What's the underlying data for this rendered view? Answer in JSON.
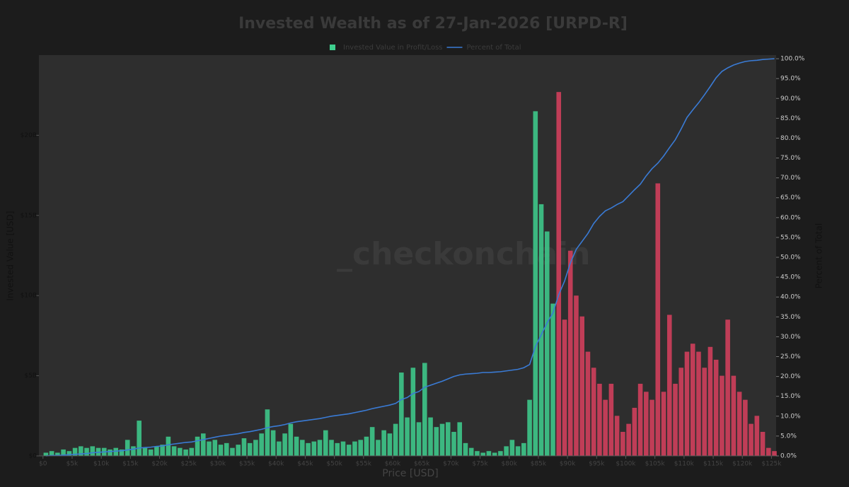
{
  "chart_data": {
    "type": "combo",
    "title": "Invested Wealth as of 27-Jan-2026 [URPD-R]",
    "watermark": "_checkonchain",
    "xlabel": "Price [USD]",
    "ylabel": "Invested Value [USD]",
    "y2label": "Percent of Total",
    "xlim": [
      -700,
      125800
    ],
    "ylim": [
      0,
      25000000000
    ],
    "y2lim": [
      0,
      100.9
    ],
    "xticks": [
      {
        "value": 0,
        "label": "$0"
      },
      {
        "value": 5000,
        "label": "$5k"
      },
      {
        "value": 10000,
        "label": "$10k"
      },
      {
        "value": 15000,
        "label": "$15k"
      },
      {
        "value": 20000,
        "label": "$20k"
      },
      {
        "value": 25000,
        "label": "$25k"
      },
      {
        "value": 30000,
        "label": "$30k"
      },
      {
        "value": 35000,
        "label": "$35k"
      },
      {
        "value": 40000,
        "label": "$40k"
      },
      {
        "value": 45000,
        "label": "$45k"
      },
      {
        "value": 50000,
        "label": "$50k"
      },
      {
        "value": 55000,
        "label": "$55k"
      },
      {
        "value": 60000,
        "label": "$60k"
      },
      {
        "value": 65000,
        "label": "$65k"
      },
      {
        "value": 70000,
        "label": "$70k"
      },
      {
        "value": 75000,
        "label": "$75k"
      },
      {
        "value": 80000,
        "label": "$80k"
      },
      {
        "value": 85000,
        "label": "$85k"
      },
      {
        "value": 90000,
        "label": "$90k"
      },
      {
        "value": 95000,
        "label": "$95k"
      },
      {
        "value": 100000,
        "label": "$100k"
      },
      {
        "value": 105000,
        "label": "$105k"
      },
      {
        "value": 110000,
        "label": "$110k"
      },
      {
        "value": 115000,
        "label": "$115k"
      },
      {
        "value": 120000,
        "label": "$120k"
      },
      {
        "value": 125000,
        "label": "$125k"
      }
    ],
    "yticks": [
      {
        "value": 0,
        "label": "$0"
      },
      {
        "value": 5000000000,
        "label": "$5B"
      },
      {
        "value": 10000000000,
        "label": "$10B"
      },
      {
        "value": 15000000000,
        "label": "$15B"
      },
      {
        "value": 20000000000,
        "label": "$20B"
      }
    ],
    "y2ticks": [
      {
        "value": 0,
        "label": "0.0%"
      },
      {
        "value": 5,
        "label": "5.0%"
      },
      {
        "value": 10,
        "label": "10.0%"
      },
      {
        "value": 15,
        "label": "15.0%"
      },
      {
        "value": 20,
        "label": "20.0%"
      },
      {
        "value": 25,
        "label": "25.0%"
      },
      {
        "value": 30,
        "label": "30.0%"
      },
      {
        "value": 35,
        "label": "35.0%"
      },
      {
        "value": 40,
        "label": "40.0%"
      },
      {
        "value": 45,
        "label": "45.0%"
      },
      {
        "value": 50,
        "label": "50.0%"
      },
      {
        "value": 55,
        "label": "55.0%"
      },
      {
        "value": 60,
        "label": "60.0%"
      },
      {
        "value": 65,
        "label": "65.0%"
      },
      {
        "value": 70,
        "label": "70.0%"
      },
      {
        "value": 75,
        "label": "75.0%"
      },
      {
        "value": 80,
        "label": "80.0%"
      },
      {
        "value": 85,
        "label": "85.0%"
      },
      {
        "value": 90,
        "label": "90.0%"
      },
      {
        "value": 95,
        "label": "95.0%"
      },
      {
        "value": 100,
        "label": "100.0%"
      }
    ],
    "x": [
      500,
      1500,
      2500,
      3500,
      4500,
      5500,
      6500,
      7500,
      8500,
      9500,
      10500,
      11500,
      12500,
      13500,
      14500,
      15500,
      16500,
      17500,
      18500,
      19500,
      20500,
      21500,
      22500,
      23500,
      24500,
      25500,
      26500,
      27500,
      28500,
      29500,
      30500,
      31500,
      32500,
      33500,
      34500,
      35500,
      36500,
      37500,
      38500,
      39500,
      40500,
      41500,
      42500,
      43500,
      44500,
      45500,
      46500,
      47500,
      48500,
      49500,
      50500,
      51500,
      52500,
      53500,
      54500,
      55500,
      56500,
      57500,
      58500,
      59500,
      60500,
      61500,
      62500,
      63500,
      64500,
      65500,
      66500,
      67500,
      68500,
      69500,
      70500,
      71500,
      72500,
      73500,
      74500,
      75500,
      76500,
      77500,
      78500,
      79500,
      80500,
      81500,
      82500,
      83500,
      84500,
      85500,
      86500,
      87500,
      88500,
      89500,
      90500,
      91500,
      92500,
      93500,
      94500,
      95500,
      96500,
      97500,
      98500,
      99500,
      100500,
      101500,
      102500,
      103500,
      104500,
      105500,
      106500,
      107500,
      108500,
      109500,
      110500,
      111500,
      112500,
      113500,
      114500,
      115500,
      116500,
      117500,
      118500,
      119500,
      120500,
      121500,
      122500,
      123500,
      124500,
      125500
    ],
    "series": [
      {
        "name": "Invested Value in Profit/Loss",
        "type": "bar",
        "color": "#3ecf8e",
        "values": [
          200000000.0,
          300000000.0,
          200000000.0,
          400000000.0,
          300000000.0,
          500000000.0,
          600000000.0,
          500000000.0,
          600000000.0,
          500000000.0,
          500000000.0,
          400000000.0,
          500000000.0,
          400000000.0,
          1000000000.0,
          600000000.0,
          2200000000.0,
          500000000.0,
          400000000.0,
          600000000.0,
          700000000.0,
          1200000000.0,
          600000000.0,
          500000000.0,
          400000000.0,
          500000000.0,
          1200000000.0,
          1400000000.0,
          900000000.0,
          1000000000.0,
          700000000.0,
          800000000.0,
          500000000.0,
          700000000.0,
          1100000000.0,
          800000000.0,
          1000000000.0,
          1400000000.0,
          2900000000.0,
          1600000000.0,
          900000000.0,
          1400000000.0,
          2000000000.0,
          1200000000.0,
          1000000000.0,
          800000000.0,
          900000000.0,
          1000000000.0,
          1600000000.0,
          1000000000.0,
          800000000.0,
          900000000.0,
          700000000.0,
          900000000.0,
          1000000000.0,
          1200000000.0,
          1800000000.0,
          1000000000.0,
          1600000000.0,
          1400000000.0,
          2000000000.0,
          5200000000.0,
          2400000000.0,
          5500000000.0,
          2100000000.0,
          5800000000.0,
          2400000000.0,
          1800000000.0,
          2000000000.0,
          2100000000.0,
          1500000000.0,
          2100000000.0,
          800000000.0,
          500000000.0,
          300000000.0,
          200000000.0,
          300000000.0,
          200000000.0,
          300000000.0,
          600000000.0,
          1000000000.0,
          600000000.0,
          800000000.0,
          3500000000.0,
          21500000000.0,
          15700000000.0,
          14000000000.0,
          9500000000.0,
          22700000000.0,
          8500000000.0,
          12800000000.0,
          10000000000.0,
          8700000000.0,
          6500000000.0,
          5500000000.0,
          4500000000.0,
          3500000000.0,
          4500000000.0,
          2500000000.0,
          1500000000.0,
          2000000000.0,
          3000000000.0,
          4500000000.0,
          4000000000.0,
          3500000000.0,
          17000000000.0,
          4000000000.0,
          8800000000.0,
          4500000000.0,
          5500000000.0,
          6500000000.0,
          7000000000.0,
          6500000000.0,
          5500000000.0,
          6800000000.0,
          6000000000.0,
          5000000000.0,
          8500000000.0,
          5000000000.0,
          4000000000.0,
          3500000000.0,
          2000000000.0,
          2500000000.0,
          1500000000.0,
          500000000.0,
          300000000.0
        ],
        "colors": [
          "#3ecf8e",
          "#3ecf8e",
          "#3ecf8e",
          "#3ecf8e",
          "#3ecf8e",
          "#3ecf8e",
          "#3ecf8e",
          "#3ecf8e",
          "#3ecf8e",
          "#3ecf8e",
          "#3ecf8e",
          "#3ecf8e",
          "#3ecf8e",
          "#3ecf8e",
          "#3ecf8e",
          "#3ecf8e",
          "#3ecf8e",
          "#3ecf8e",
          "#3ecf8e",
          "#3ecf8e",
          "#3ecf8e",
          "#3ecf8e",
          "#3ecf8e",
          "#3ecf8e",
          "#3ecf8e",
          "#3ecf8e",
          "#3ecf8e",
          "#3ecf8e",
          "#3ecf8e",
          "#3ecf8e",
          "#3ecf8e",
          "#3ecf8e",
          "#3ecf8e",
          "#3ecf8e",
          "#3ecf8e",
          "#3ecf8e",
          "#3ecf8e",
          "#3ecf8e",
          "#3ecf8e",
          "#3ecf8e",
          "#3ecf8e",
          "#3ecf8e",
          "#3ecf8e",
          "#3ecf8e",
          "#3ecf8e",
          "#3ecf8e",
          "#3ecf8e",
          "#3ecf8e",
          "#3ecf8e",
          "#3ecf8e",
          "#3ecf8e",
          "#3ecf8e",
          "#3ecf8e",
          "#3ecf8e",
          "#3ecf8e",
          "#3ecf8e",
          "#3ecf8e",
          "#3ecf8e",
          "#3ecf8e",
          "#3ecf8e",
          "#3ecf8e",
          "#3ecf8e",
          "#3ecf8e",
          "#3ecf8e",
          "#3ecf8e",
          "#3ecf8e",
          "#3ecf8e",
          "#3ecf8e",
          "#3ecf8e",
          "#3ecf8e",
          "#3ecf8e",
          "#3ecf8e",
          "#3ecf8e",
          "#3ecf8e",
          "#3ecf8e",
          "#3ecf8e",
          "#3ecf8e",
          "#3ecf8e",
          "#3ecf8e",
          "#3ecf8e",
          "#3ecf8e",
          "#3ecf8e",
          "#3ecf8e",
          "#3ecf8e",
          "#3ecf8e",
          "#3ecf8e",
          "#3ecf8e",
          "#3ecf8e",
          "#d9405e",
          "#d9405e",
          "#d9405e",
          "#d9405e",
          "#d9405e",
          "#d9405e",
          "#d9405e",
          "#d9405e",
          "#d9405e",
          "#d9405e",
          "#d9405e",
          "#d9405e",
          "#d9405e",
          "#d9405e",
          "#d9405e",
          "#d9405e",
          "#d9405e",
          "#d9405e",
          "#d9405e",
          "#d9405e",
          "#d9405e",
          "#d9405e",
          "#d9405e",
          "#d9405e",
          "#d9405e",
          "#d9405e",
          "#d9405e",
          "#d9405e",
          "#d9405e",
          "#d9405e",
          "#d9405e",
          "#d9405e",
          "#d9405e",
          "#d9405e",
          "#d9405e",
          "#d9405e",
          "#d9405e",
          "#d9405e"
        ]
      },
      {
        "name": "Percent of Total",
        "type": "line",
        "axis": "y2",
        "color": "#3a7bd5",
        "values": [
          0,
          0.1,
          0.1,
          0.2,
          0.3,
          0.4,
          0.5,
          0.6,
          0.8,
          0.9,
          1,
          1.1,
          1.2,
          1.3,
          1.5,
          1.7,
          2,
          2.1,
          2.2,
          2.4,
          2.5,
          2.8,
          3,
          3.2,
          3.4,
          3.5,
          3.8,
          4.1,
          4.4,
          4.7,
          5,
          5.2,
          5.4,
          5.6,
          5.9,
          6.1,
          6.4,
          6.7,
          7.1,
          7.4,
          7.6,
          7.9,
          8.3,
          8.6,
          8.8,
          9,
          9.2,
          9.4,
          9.7,
          10,
          10.2,
          10.4,
          10.6,
          10.9,
          11.2,
          11.5,
          11.9,
          12.2,
          12.5,
          12.8,
          13.2,
          14.2,
          14.7,
          15.7,
          16.2,
          17.3,
          17.8,
          18.3,
          18.8,
          19.4,
          20,
          20.4,
          20.6,
          20.7,
          20.8,
          21,
          21,
          21.1,
          21.2,
          21.4,
          21.6,
          21.8,
          22.2,
          23,
          27.5,
          30.5,
          33.5,
          36,
          40.6,
          44,
          48.6,
          52,
          54,
          56,
          58.5,
          60.3,
          61.7,
          62.4,
          63.3,
          64,
          65.5,
          67,
          68.4,
          70.5,
          72.3,
          73.7,
          75.5,
          77.6,
          79.6,
          82.3,
          85.2,
          87.1,
          88.9,
          90.9,
          93,
          95.2,
          96.8,
          97.7,
          98.4,
          98.9,
          99.3,
          99.5,
          99.6,
          99.8,
          99.9,
          100
        ]
      }
    ]
  }
}
